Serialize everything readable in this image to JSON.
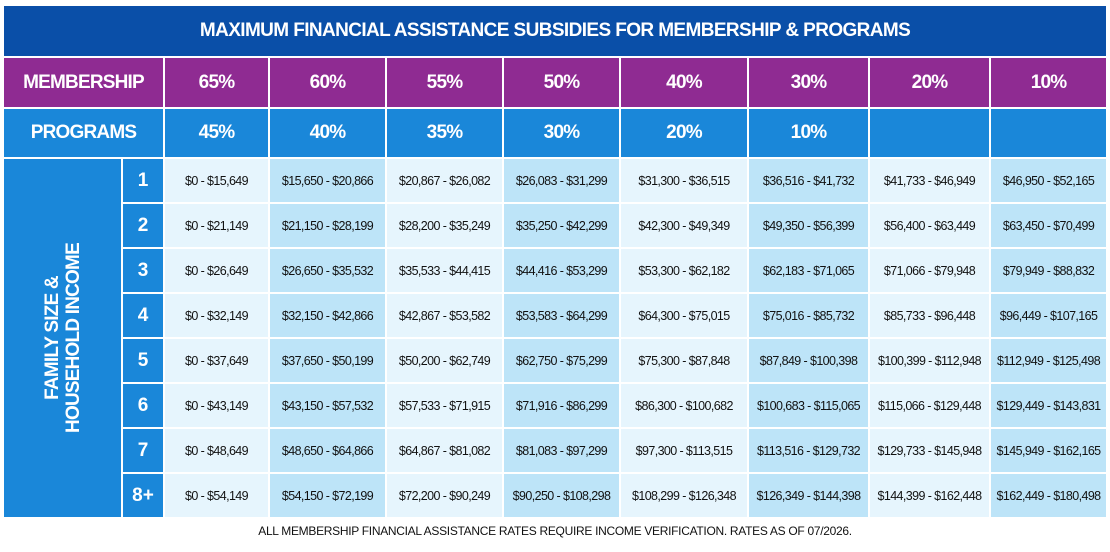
{
  "title": "MAXIMUM FINANCIAL ASSISTANCE SUBSIDIES FOR MEMBERSHIP & PROGRAMS",
  "membership": {
    "label": "MEMBERSHIP",
    "rates": [
      "65%",
      "60%",
      "55%",
      "50%",
      "40%",
      "30%",
      "20%",
      "10%"
    ]
  },
  "programs": {
    "label": "PROGRAMS",
    "rates": [
      "45%",
      "40%",
      "35%",
      "30%",
      "20%",
      "10%",
      "",
      ""
    ]
  },
  "side_label": {
    "line1": "FAMILY SIZE &",
    "line2": "HOUSEHOLD INCOME"
  },
  "rows": [
    {
      "size": "1",
      "ranges": [
        "$0  -  $15,649",
        "$15,650 - $20,866",
        "$20,867 - $26,082",
        "$26,083 - $31,299",
        "$31,300 - $36,515",
        "$36,516 - $41,732",
        "$41,733 - $46,949",
        "$46,950 - $52,165"
      ]
    },
    {
      "size": "2",
      "ranges": [
        "$0  -  $21,149",
        "$21,150 - $28,199",
        "$28,200 - $35,249",
        "$35,250 - $42,299",
        "$42,300 - $49,349",
        "$49,350 - $56,399",
        "$56,400 - $63,449",
        "$63,450 - $70,499"
      ]
    },
    {
      "size": "3",
      "ranges": [
        "$0  -  $26,649",
        "$26,650 - $35,532",
        "$35,533 - $44,415",
        "$44,416 - $53,299",
        "$53,300 - $62,182",
        "$62,183 - $71,065",
        "$71,066 - $79,948",
        "$79,949 - $88,832"
      ]
    },
    {
      "size": "4",
      "ranges": [
        "$0  -  $32,149",
        "$32,150 - $42,866",
        "$42,867 - $53,582",
        "$53,583 - $64,299",
        "$64,300 - $75,015",
        "$75,016 - $85,732",
        "$85,733 - $96,448",
        "$96,449 - $107,165"
      ]
    },
    {
      "size": "5",
      "ranges": [
        "$0  -  $37,649",
        "$37,650 - $50,199",
        "$50,200 - $62,749",
        "$62,750 - $75,299",
        "$75,300 - $87,848",
        "$87,849 - $100,398",
        "$100,399 - $112,948",
        "$112,949 - $125,498"
      ]
    },
    {
      "size": "6",
      "ranges": [
        "$0  -  $43,149",
        "$43,150 - $57,532",
        "$57,533 - $71,915",
        "$71,916 - $86,299",
        "$86,300 - $100,682",
        "$100,683 - $115,065",
        "$115,066 - $129,448",
        "$129,449 - $143,831"
      ]
    },
    {
      "size": "7",
      "ranges": [
        "$0  -  $48,649",
        "$48,650 - $64,866",
        "$64,867 - $81,082",
        "$81,083 - $97,299",
        "$97,300 - $113,515",
        "$113,516 - $129,732",
        "$129,733 - $145,948",
        "$145,949 - $162,165"
      ]
    },
    {
      "size": "8+",
      "ranges": [
        "$0  -  $54,149",
        "$54,150 - $72,199",
        "$72,200 - $90,249",
        "$90,250 - $108,298",
        "$108,299 - $126,348",
        "$126,349 - $144,398",
        "$144,399 - $162,448",
        "$162,449 - $180,498"
      ]
    }
  ],
  "footnote": "ALL MEMBERSHIP FINANCIAL ASSISTANCE RATES REQUIRE INCOME VERIFICATION. RATES AS OF 07/2026.",
  "colors": {
    "title_bg": "#0a4fa8",
    "membership_bg": "#8f2b92",
    "programs_bg": "#1a87d9",
    "cell_light": "#e6f5fd",
    "cell_mid": "#bde4f8"
  }
}
